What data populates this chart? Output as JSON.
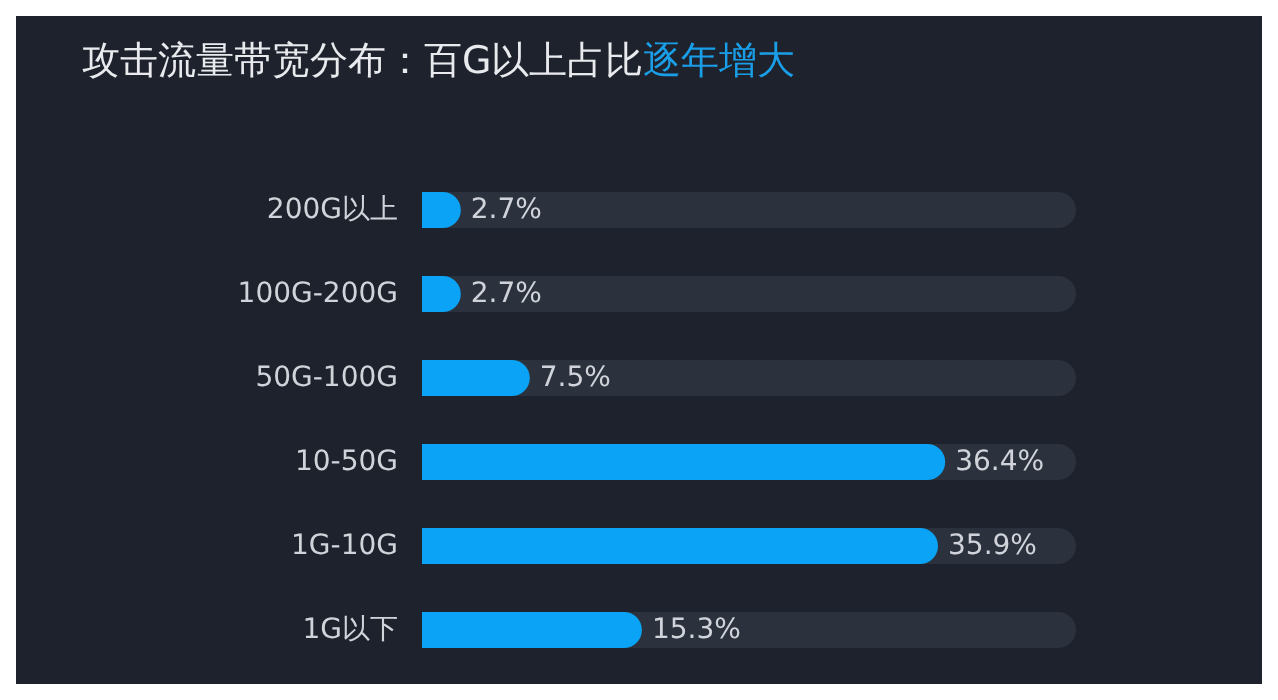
{
  "chart_data": {
    "type": "bar",
    "orientation": "horizontal",
    "title": "攻击流量带宽分布：百G以上占比",
    "subtitle": "逐年增大",
    "categories": [
      "200G以上",
      "100G-200G",
      "50G-100G",
      "10-50G",
      "1G-10G",
      "1G以下"
    ],
    "values": [
      2.7,
      2.7,
      7.5,
      36.4,
      35.9,
      15.3
    ],
    "value_labels": [
      "2.7%",
      "2.7%",
      "7.5%",
      "36.4%",
      "35.9%",
      "15.3%"
    ],
    "color": "#0aa3f5",
    "grid": false
  }
}
